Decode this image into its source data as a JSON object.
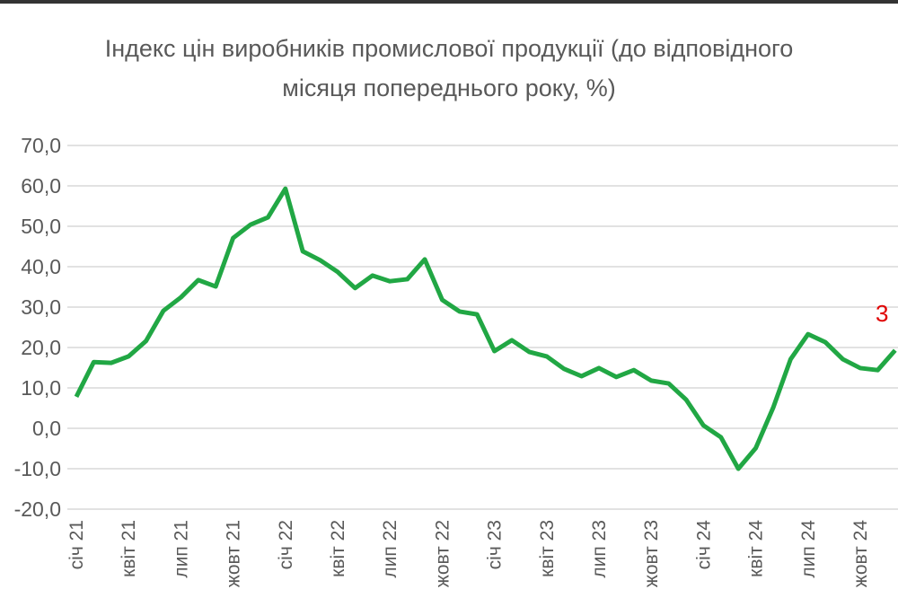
{
  "chart_data": {
    "type": "line",
    "title": "Індекс цін виробників промислової продукції (до відповідного місяця попереднього року, %)",
    "categories": [
      "січ 21",
      null,
      null,
      "квіт 21",
      null,
      null,
      "лип 21",
      null,
      null,
      "жовт 21",
      null,
      null,
      "січ 22",
      null,
      null,
      "квіт 22",
      null,
      null,
      "лип 22",
      null,
      null,
      "жовт 22",
      null,
      null,
      "січ 23",
      null,
      null,
      "квіт 23",
      null,
      null,
      "лип 23",
      null,
      null,
      "жовт 23",
      null,
      null,
      "січ 24",
      null,
      null,
      "квіт 24",
      null,
      null,
      "лип 24",
      null,
      null,
      "жовт 24",
      null,
      null
    ],
    "series": [
      {
        "color": "#21a744",
        "values": [
          7.8,
          16.4,
          16.2,
          17.8,
          21.6,
          29.1,
          32.4,
          36.7,
          35.1,
          47.1,
          50.4,
          52.2,
          59.3,
          43.8,
          41.6,
          38.7,
          34.7,
          37.8,
          36.4,
          36.9,
          41.8,
          31.8,
          28.9,
          28.2,
          19.1,
          21.8,
          18.9,
          17.8,
          14.7,
          12.9,
          14.9,
          12.7,
          14.4,
          11.8,
          11.1,
          7.1,
          0.7,
          -2.2,
          -10.0,
          -4.9,
          5.1,
          17.1,
          23.3,
          21.3,
          17.1,
          14.9,
          14.4,
          19.3
        ]
      }
    ],
    "ylim": [
      -20,
      70
    ],
    "yticks": [
      {
        "value": -20,
        "label": "-20,0"
      },
      {
        "value": -10,
        "label": "-10,0"
      },
      {
        "value": 0,
        "label": "0,0"
      },
      {
        "value": 10,
        "label": "10,0"
      },
      {
        "value": 20,
        "label": "20,0"
      },
      {
        "value": 30,
        "label": "30,0"
      },
      {
        "value": 40,
        "label": "40,0"
      },
      {
        "value": 50,
        "label": "50,0"
      },
      {
        "value": 60,
        "label": "60,0"
      },
      {
        "value": 70,
        "label": "70,0"
      }
    ],
    "grid": true,
    "annotation": {
      "text": "3",
      "color": "#e00000"
    }
  }
}
